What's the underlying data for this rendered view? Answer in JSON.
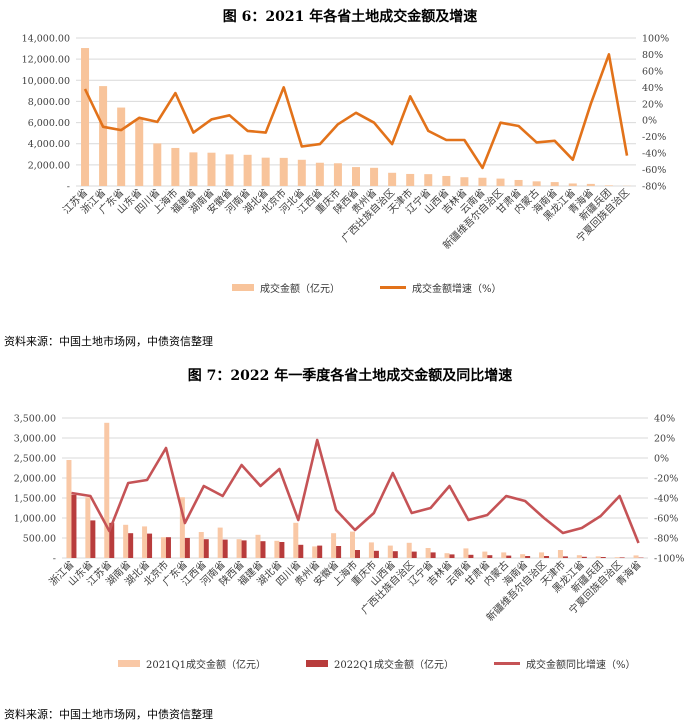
{
  "source_label": "资料来源：中国土地市场网，中债资信整理",
  "colors": {
    "bar1": "#f8c49b",
    "line1": "#e2721a",
    "bar2a": "#f9c8a6",
    "bar2b": "#b83c3c",
    "line2": "#c55356"
  },
  "chart_data": [
    {
      "type": "bar",
      "title": "图 6：2021 年各省土地成交金额及增速",
      "categories": [
        "江苏省",
        "浙江省",
        "广东省",
        "山东省",
        "四川省",
        "上海市",
        "福建省",
        "湖南省",
        "安徽省",
        "河南省",
        "湖北省",
        "北京市",
        "河北省",
        "江西省",
        "重庆市",
        "陕西省",
        "贵州省",
        "广西壮族自治区",
        "天津市",
        "辽宁省",
        "山西省",
        "吉林省",
        "云南省",
        "新疆维吾尔自治区",
        "甘肃省",
        "内蒙古",
        "海南省",
        "黑龙江省",
        "青海省",
        "新疆兵团",
        "宁夏回族自治区"
      ],
      "series": [
        {
          "name": "成交金额（亿元）",
          "axis": "left",
          "kind": "bar",
          "values": [
            13050,
            9450,
            7420,
            6330,
            4030,
            3600,
            3180,
            3150,
            2990,
            2950,
            2680,
            2660,
            2480,
            2200,
            2150,
            1790,
            1720,
            1250,
            1140,
            1120,
            950,
            830,
            780,
            700,
            570,
            440,
            370,
            240,
            200,
            60,
            20
          ]
        },
        {
          "name": "成交金额增速（%）",
          "axis": "right",
          "kind": "line",
          "values": [
            38,
            -8,
            -12,
            3,
            -2,
            33,
            -15,
            1,
            6,
            -13,
            -15,
            40,
            -32,
            -29,
            -5,
            9,
            -3,
            -29,
            29,
            -13,
            -24,
            -24,
            -58,
            -3,
            -7,
            -27,
            -25,
            -48,
            20,
            80,
            -43
          ]
        }
      ],
      "y_left": {
        "min": 0,
        "max": 14000,
        "step": 2000,
        "ticks": [
          "-",
          "2,000.00",
          "4,000.00",
          "6,000.00",
          "8,000.00",
          "10,000.00",
          "12,000.00",
          "14,000.00"
        ]
      },
      "y_right": {
        "min": -80,
        "max": 100,
        "step": 20,
        "ticks": [
          "-80%",
          "-60%",
          "-40%",
          "-20%",
          "0%",
          "20%",
          "40%",
          "60%",
          "80%",
          "100%"
        ]
      },
      "legend": [
        "成交金额（亿元）",
        "成交金额增速（%）"
      ],
      "legend_position": "bottom"
    },
    {
      "type": "bar",
      "title": "图 7：2022 年一季度各省土地成交金额及同比增速",
      "categories": [
        "浙江省",
        "山东省",
        "江苏省",
        "湖南省",
        "湖北省",
        "北京市",
        "广东省",
        "江西省",
        "河南省",
        "陕西省",
        "福建省",
        "湖北省",
        "四川省",
        "贵州省",
        "安徽省",
        "上海市",
        "重庆市",
        "山西省",
        "广西壮族自治区",
        "辽宁省",
        "吉林省",
        "云南省",
        "甘肃省",
        "内蒙古",
        "海南省",
        "新疆维吾尔自治区",
        "天津市",
        "黑龙江省",
        "新疆兵团",
        "宁夏回族自治区",
        "青海省"
      ],
      "series": [
        {
          "name": "2021Q1成交金额（亿元）",
          "axis": "left",
          "kind": "bar",
          "values": [
            2450,
            1520,
            3380,
            830,
            790,
            520,
            1520,
            650,
            760,
            470,
            580,
            430,
            880,
            290,
            620,
            660,
            390,
            310,
            380,
            250,
            120,
            240,
            160,
            140,
            95,
            140,
            200,
            70,
            40,
            20,
            65
          ]
        },
        {
          "name": "2022Q1成交金额（亿元）",
          "axis": "left",
          "kind": "bar",
          "values": [
            1580,
            940,
            880,
            620,
            610,
            520,
            500,
            470,
            460,
            440,
            420,
            400,
            330,
            310,
            300,
            200,
            180,
            170,
            160,
            140,
            90,
            80,
            70,
            60,
            50,
            50,
            40,
            30,
            25,
            15,
            10
          ]
        },
        {
          "name": "成交金额同比增速（%）",
          "axis": "right",
          "kind": "line",
          "values": [
            -35,
            -38,
            -73,
            -25,
            -22,
            10,
            -65,
            -28,
            -38,
            -7,
            -28,
            -11,
            -62,
            18,
            -52,
            -72,
            -55,
            -15,
            -55,
            -50,
            -28,
            -62,
            -57,
            -38,
            -43,
            -60,
            -75,
            -70,
            -58,
            -38,
            -85
          ]
        }
      ],
      "y_left": {
        "min": 0,
        "max": 3500,
        "step": 500,
        "ticks": [
          "-",
          "500.00",
          "1,000.00",
          "1,500.00",
          "2,000.00",
          "2,500.00",
          "3,000.00",
          "3,500.00"
        ]
      },
      "y_right": {
        "min": -100,
        "max": 40,
        "step": 20,
        "ticks": [
          "-100%",
          "-80%",
          "-60%",
          "-40%",
          "-20%",
          "0%",
          "20%",
          "40%"
        ]
      },
      "legend": [
        "2021Q1成交金额（亿元）",
        "2022Q1成交金额（亿元）",
        "成交金额同比增速（%）"
      ],
      "legend_position": "bottom"
    }
  ]
}
